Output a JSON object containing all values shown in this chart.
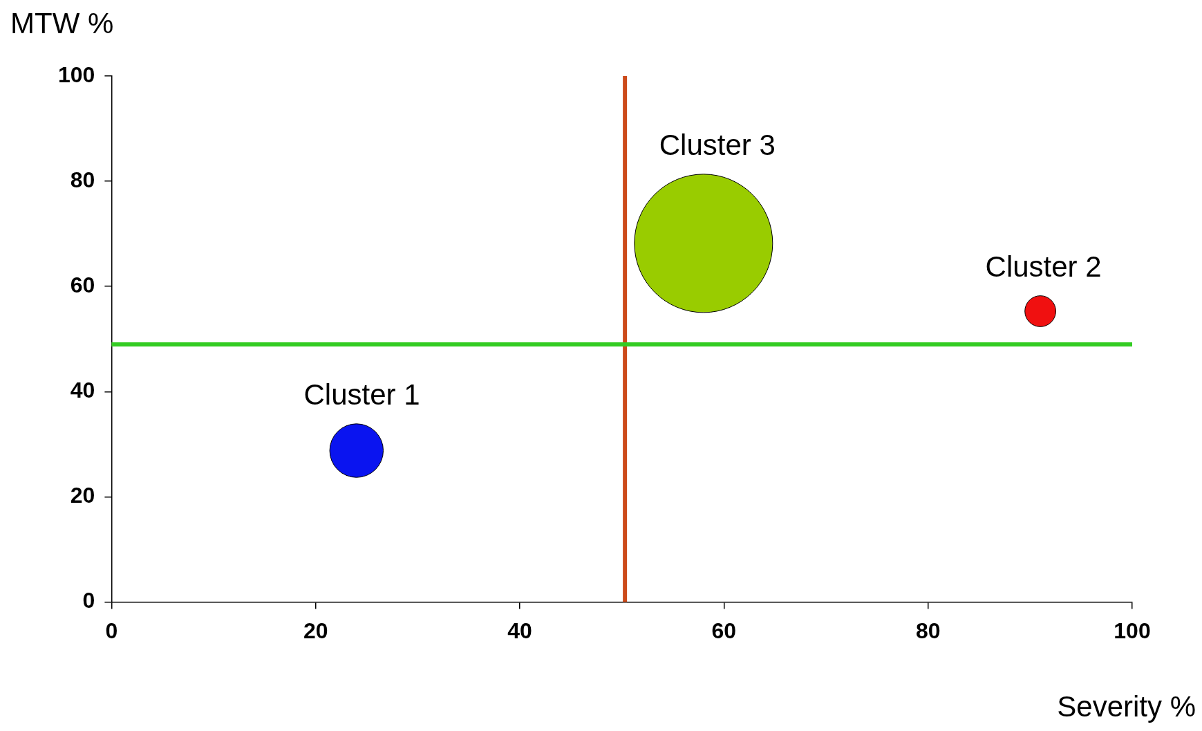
{
  "chart_data": {
    "type": "bubble",
    "xlabel": "Severity %",
    "ylabel": "MTW %",
    "xlim": [
      0,
      100
    ],
    "xticks": [
      0,
      20,
      40,
      60,
      80,
      100
    ],
    "ylim": [
      0,
      100
    ],
    "yticks": [
      0,
      20,
      40,
      60,
      80,
      100
    ],
    "grid": false,
    "legend": false,
    "series": [
      {
        "name": "Cluster 1",
        "color": "#0a14f0",
        "x": [
          24
        ],
        "values": [
          28.8
        ],
        "sizes": [
          0.15
        ]
      },
      {
        "name": "Cluster 2",
        "color": "#f01010",
        "x": [
          91
        ],
        "values": [
          55.3
        ],
        "sizes": [
          0.05
        ]
      },
      {
        "name": "Cluster 3",
        "color": "#99cc00",
        "x": [
          58
        ],
        "values": [
          68.2
        ],
        "sizes": [
          1
        ]
      }
    ],
    "ref_lines": [
      {
        "axis": "x",
        "value": 50.3,
        "color": "#cc4a1a"
      },
      {
        "axis": "y",
        "value": 49,
        "color": "#33cc22"
      }
    ]
  }
}
